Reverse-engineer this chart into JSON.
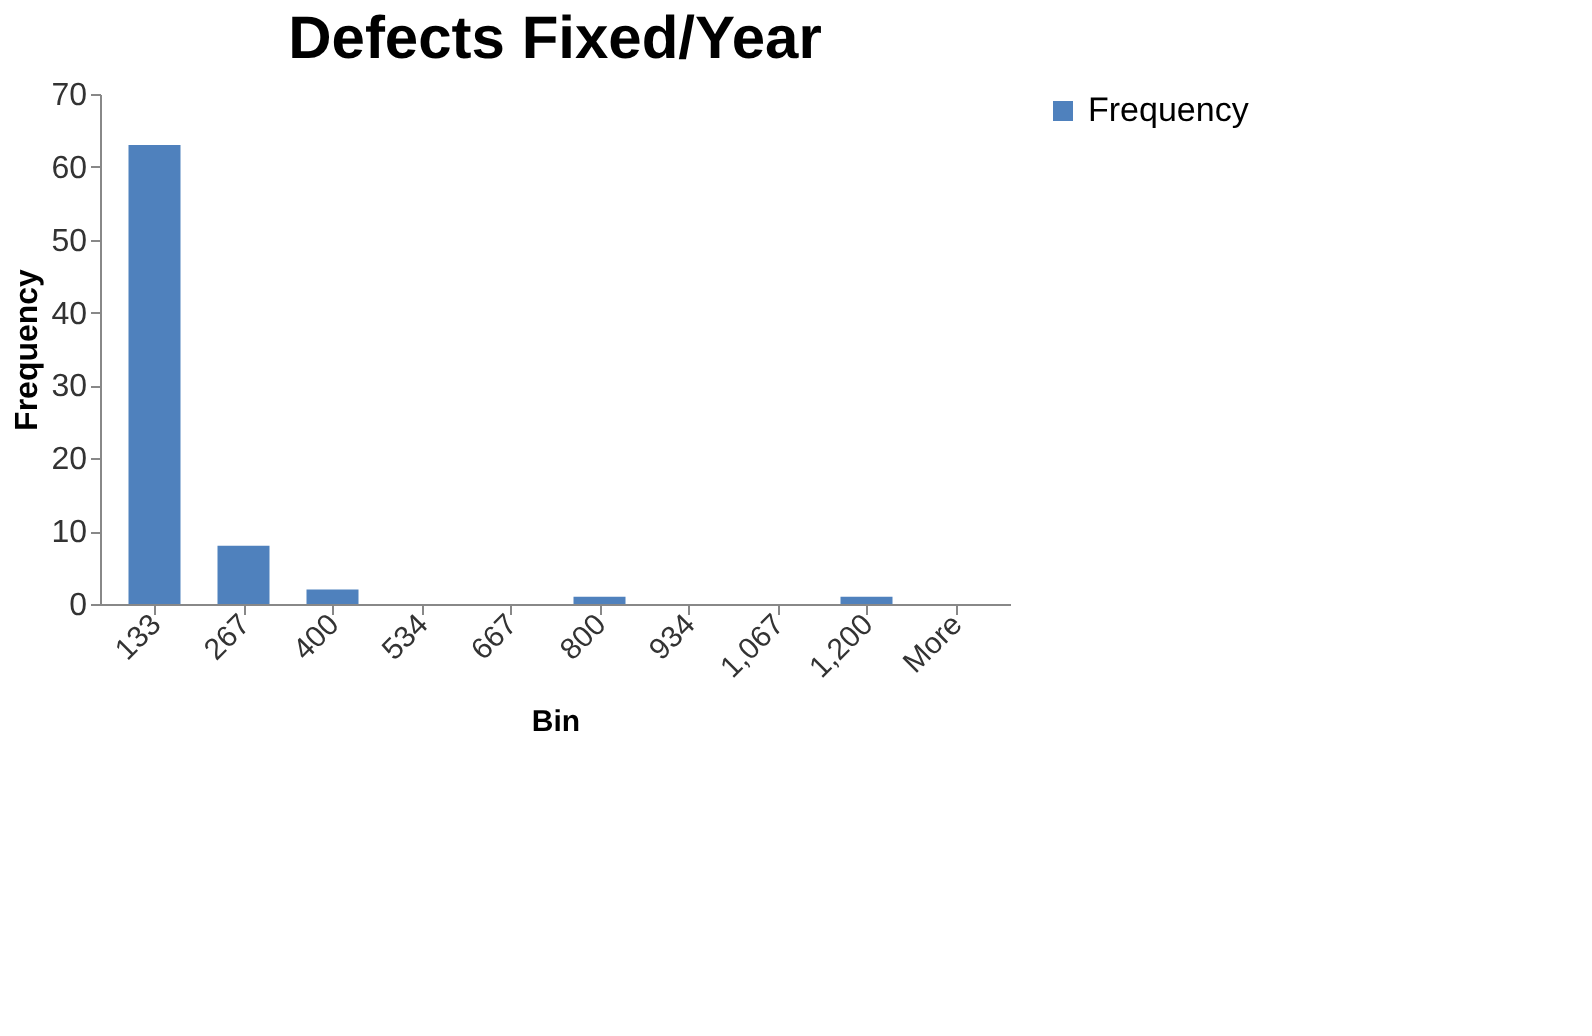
{
  "chart_data": {
    "type": "bar",
    "title": "Defects Fixed/Year",
    "xlabel": "Bin",
    "ylabel": "Frequency",
    "categories": [
      "133",
      "267",
      "400",
      "534",
      "667",
      "800",
      "934",
      "1,067",
      "1,200",
      "More"
    ],
    "series": [
      {
        "name": "Frequency",
        "color": "#4f81bd",
        "values": [
          63,
          8,
          2,
          0,
          0,
          1,
          0,
          0,
          1,
          0
        ]
      }
    ],
    "ylim": [
      0,
      70
    ],
    "yticks": [
      0,
      10,
      20,
      30,
      40,
      50,
      60,
      70
    ],
    "grid": false,
    "legend": "right"
  }
}
